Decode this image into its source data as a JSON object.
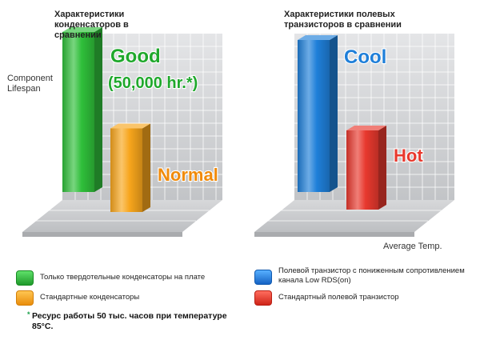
{
  "colors": {
    "green": "#2fbf3a",
    "orange": "#f7a51c",
    "blue": "#1f7fd9",
    "red": "#e8392e",
    "panel": "#cfd1d4"
  },
  "chart_data": [
    {
      "type": "bar",
      "title": "Характеристики конденсаторов в сравнении",
      "ylabel": "Component Lifespan",
      "xlabel": "",
      "categories": [
        "Только твердотельные конденсаторы на плате",
        "Стандартные конденсаторы"
      ],
      "values": [
        1.0,
        0.55
      ],
      "bar_labels": [
        "Good (50,000 hr.*)",
        "Normal"
      ],
      "colors": [
        "#2fbf3a",
        "#f7a51c"
      ],
      "grid": true
    },
    {
      "type": "bar",
      "title": "Характеристики полевых транзисторов в сравнении",
      "xlabel": "Average Temp.",
      "ylabel": "",
      "categories": [
        "Полевой транзистор с пониженным сопротивлением канала Low RDS(on)",
        "Стандартный полевой транзистор"
      ],
      "values": [
        1.0,
        0.55
      ],
      "bar_labels": [
        "Cool",
        "Hot"
      ],
      "colors": [
        "#1f7fd9",
        "#e8392e"
      ],
      "grid": true
    }
  ],
  "capacitor_chart": {
    "title": "Характеристики конденсаторов в сравнении",
    "ylabel": "Component Lifespan",
    "good_line1": "Good",
    "good_line2": "(50,000 hr.*)",
    "normal": "Normal"
  },
  "mosfet_chart": {
    "title": "Характеристики полевых транзисторов в сравнении",
    "xlabel": "Average Temp.",
    "cool": "Cool",
    "hot": "Hot"
  },
  "legend": {
    "solid_caps": "Только твердотельные конденсаторы на плате",
    "standard_caps": "Стандартные конденсаторы",
    "low_rds": "Полевой транзистор с пониженным сопротивлением канала Low RDS(on)",
    "standard_fet": "Стандартный полевой транзистор"
  },
  "footnote": {
    "marker": "*",
    "text": "Ресурс работы 50 тыс. часов при температуре 85°C."
  }
}
